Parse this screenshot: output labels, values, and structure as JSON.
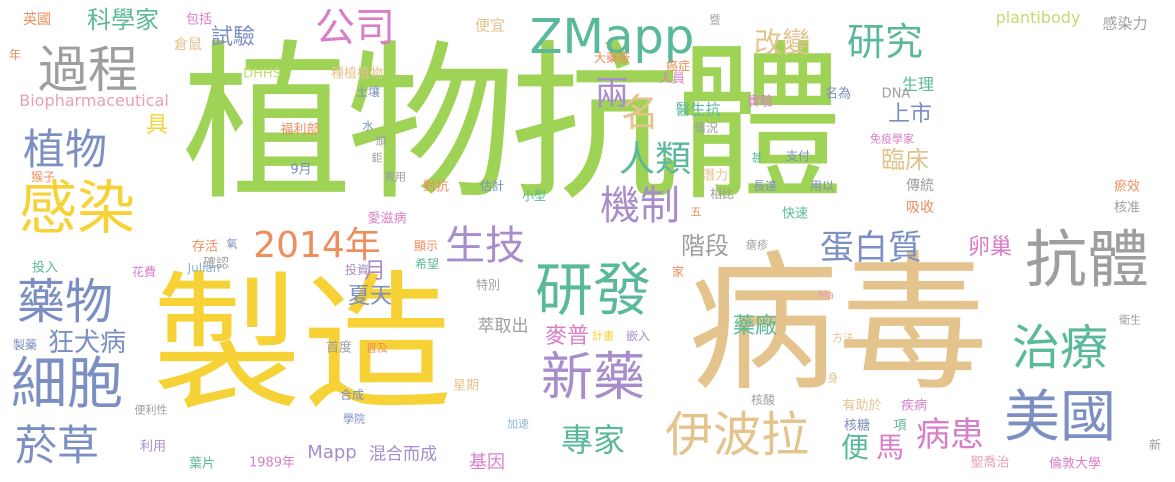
{
  "colors": {
    "green": "#9fd356",
    "yellow": "#f7d237",
    "sand": "#e4c38c",
    "grey": "#9e9e9e",
    "blue": "#7b8fc2",
    "teal": "#5ab99b",
    "pink": "#d97fc9",
    "orange": "#ef8d5c",
    "purple": "#a88ccb",
    "lime": "#c2dc6d",
    "rose": "#e8a0b8",
    "lightblue": "#8ab8d4",
    "lightgrey": "#c4c4c4"
  },
  "words": [
    {
      "text": "植物抗體",
      "color": "green"
    },
    {
      "text": "製造",
      "color": "yellow"
    },
    {
      "text": "病毒",
      "color": "sand"
    },
    {
      "text": "ZMapp",
      "color": "teal"
    },
    {
      "text": "過程",
      "color": "grey"
    },
    {
      "text": "公司",
      "color": "pink"
    },
    {
      "text": "研究",
      "color": "teal"
    },
    {
      "text": "感染",
      "color": "yellow"
    },
    {
      "text": "植物",
      "color": "blue"
    },
    {
      "text": "2014年",
      "color": "orange"
    },
    {
      "text": "抗體",
      "color": "grey"
    },
    {
      "text": "研發",
      "color": "teal"
    },
    {
      "text": "生技",
      "color": "purple"
    },
    {
      "text": "機制",
      "color": "purple"
    },
    {
      "text": "藥物",
      "color": "blue"
    },
    {
      "text": "細胞",
      "color": "blue"
    },
    {
      "text": "新藥",
      "color": "purple"
    },
    {
      "text": "治療",
      "color": "teal"
    },
    {
      "text": "美國",
      "color": "blue"
    },
    {
      "text": "伊波拉",
      "color": "sand"
    },
    {
      "text": "專家",
      "color": "teal"
    },
    {
      "text": "菸草",
      "color": "blue"
    },
    {
      "text": "病患",
      "color": "pink"
    },
    {
      "text": "蛋白質",
      "color": "blue"
    },
    {
      "text": "人類",
      "color": "teal"
    },
    {
      "text": "科學家",
      "color": "teal"
    },
    {
      "text": "改變",
      "color": "sand"
    },
    {
      "text": "狂犬病",
      "color": "blue"
    },
    {
      "text": "名",
      "color": "sand"
    },
    {
      "text": "試驗",
      "color": "blue"
    },
    {
      "text": "兩",
      "color": "purple"
    },
    {
      "text": "上市",
      "color": "blue"
    },
    {
      "text": "臨床",
      "color": "sand"
    },
    {
      "text": "卵巢",
      "color": "pink"
    },
    {
      "text": "階段",
      "color": "grey"
    },
    {
      "text": "藥廠",
      "color": "teal"
    },
    {
      "text": "月",
      "color": "purple"
    },
    {
      "text": "夏天",
      "color": "blue"
    },
    {
      "text": "麥普",
      "color": "pink"
    },
    {
      "text": "便",
      "color": "teal"
    },
    {
      "text": "馬",
      "color": "pink"
    },
    {
      "text": "具",
      "color": "yellow"
    },
    {
      "text": "Mapp",
      "color": "purple"
    },
    {
      "text": "混合而成",
      "color": "purple"
    },
    {
      "text": "基因",
      "color": "pink"
    },
    {
      "text": "萃取出",
      "color": "grey"
    },
    {
      "text": "plantibody",
      "color": "lime"
    },
    {
      "text": "Biopharmaceutical",
      "color": "rose"
    },
    {
      "text": "英國",
      "color": "orange"
    },
    {
      "text": "包括",
      "color": "pink"
    },
    {
      "text": "倉鼠",
      "color": "sand"
    },
    {
      "text": "便宜",
      "color": "sand"
    },
    {
      "text": "感染力",
      "color": "grey"
    },
    {
      "text": "癌症",
      "color": "orange"
    },
    {
      "text": "大藥廠",
      "color": "orange"
    },
    {
      "text": "人員",
      "color": "pink"
    },
    {
      "text": "生理",
      "color": "teal"
    },
    {
      "text": "醫生抗",
      "color": "teal"
    },
    {
      "text": "名為",
      "color": "blue"
    },
    {
      "text": "DNA",
      "color": "grey"
    },
    {
      "text": "實驗",
      "color": "pink"
    },
    {
      "text": "種植植物",
      "color": "sand"
    },
    {
      "text": "DHHS",
      "color": "lime"
    },
    {
      "text": "土壤",
      "color": "blue"
    },
    {
      "text": "福利部",
      "color": "orange"
    },
    {
      "text": "免疫學家",
      "color": "pink"
    },
    {
      "text": "情況",
      "color": "grey"
    },
    {
      "text": "支付",
      "color": "blue"
    },
    {
      "text": "用以",
      "color": "blue"
    },
    {
      "text": "潛力",
      "color": "sand"
    },
    {
      "text": "長達",
      "color": "blue"
    },
    {
      "text": "相比",
      "color": "grey"
    },
    {
      "text": "傳統",
      "color": "grey"
    },
    {
      "text": "吸收",
      "color": "orange"
    },
    {
      "text": "快速",
      "color": "teal"
    },
    {
      "text": "瘀效",
      "color": "orange"
    },
    {
      "text": "核准",
      "color": "grey"
    },
    {
      "text": "9月",
      "color": "blue"
    },
    {
      "text": "猴子",
      "color": "orange"
    },
    {
      "text": "費用",
      "color": "grey"
    },
    {
      "text": "估計",
      "color": "blue"
    },
    {
      "text": "小型",
      "color": "teal"
    },
    {
      "text": "對抗",
      "color": "orange"
    },
    {
      "text": "愛滋病",
      "color": "pink"
    },
    {
      "text": "存活",
      "color": "orange"
    },
    {
      "text": "確認",
      "color": "grey"
    },
    {
      "text": "投入",
      "color": "teal"
    },
    {
      "text": "花費",
      "color": "pink"
    },
    {
      "text": "Julian",
      "color": "lightblue"
    },
    {
      "text": "希望",
      "color": "teal"
    },
    {
      "text": "投資",
      "color": "purple"
    },
    {
      "text": "顯示",
      "color": "orange"
    },
    {
      "text": "特別",
      "color": "grey"
    },
    {
      "text": "家",
      "color": "orange"
    },
    {
      "text": "Ma",
      "color": "rose"
    },
    {
      "text": "計畫",
      "color": "yellow"
    },
    {
      "text": "嵌入",
      "color": "purple"
    },
    {
      "text": "方法",
      "color": "sand"
    },
    {
      "text": "衛生",
      "color": "grey"
    },
    {
      "text": "首度",
      "color": "grey"
    },
    {
      "text": "普及",
      "color": "orange"
    },
    {
      "text": "製藥",
      "color": "blue"
    },
    {
      "text": "合成",
      "color": "blue"
    },
    {
      "text": "星期",
      "color": "sand"
    },
    {
      "text": "便利性",
      "color": "grey"
    },
    {
      "text": "學院",
      "color": "blue"
    },
    {
      "text": "加速",
      "color": "lightblue"
    },
    {
      "text": "核酸",
      "color": "grey"
    },
    {
      "text": "有助於",
      "color": "sand"
    },
    {
      "text": "疾病",
      "color": "pink"
    },
    {
      "text": "核糖",
      "color": "blue"
    },
    {
      "text": "項",
      "color": "teal"
    },
    {
      "text": "利用",
      "color": "purple"
    },
    {
      "text": "葉片",
      "color": "teal"
    },
    {
      "text": "1989年",
      "color": "pink"
    },
    {
      "text": "聖喬治",
      "color": "rose"
    },
    {
      "text": "倫敦大學",
      "color": "pink"
    },
    {
      "text": "新",
      "color": "grey"
    },
    {
      "text": "年",
      "color": "orange"
    },
    {
      "text": "暨",
      "color": "grey"
    },
    {
      "text": "水",
      "color": "blue"
    },
    {
      "text": "頒",
      "color": "grey"
    },
    {
      "text": "鉅",
      "color": "grey"
    },
    {
      "text": "甚",
      "color": "teal"
    },
    {
      "text": "五",
      "color": "orange"
    },
    {
      "text": "氧",
      "color": "blue"
    },
    {
      "text": "身",
      "color": "sand"
    },
    {
      "text": "瘡疹",
      "color": "grey"
    }
  ]
}
